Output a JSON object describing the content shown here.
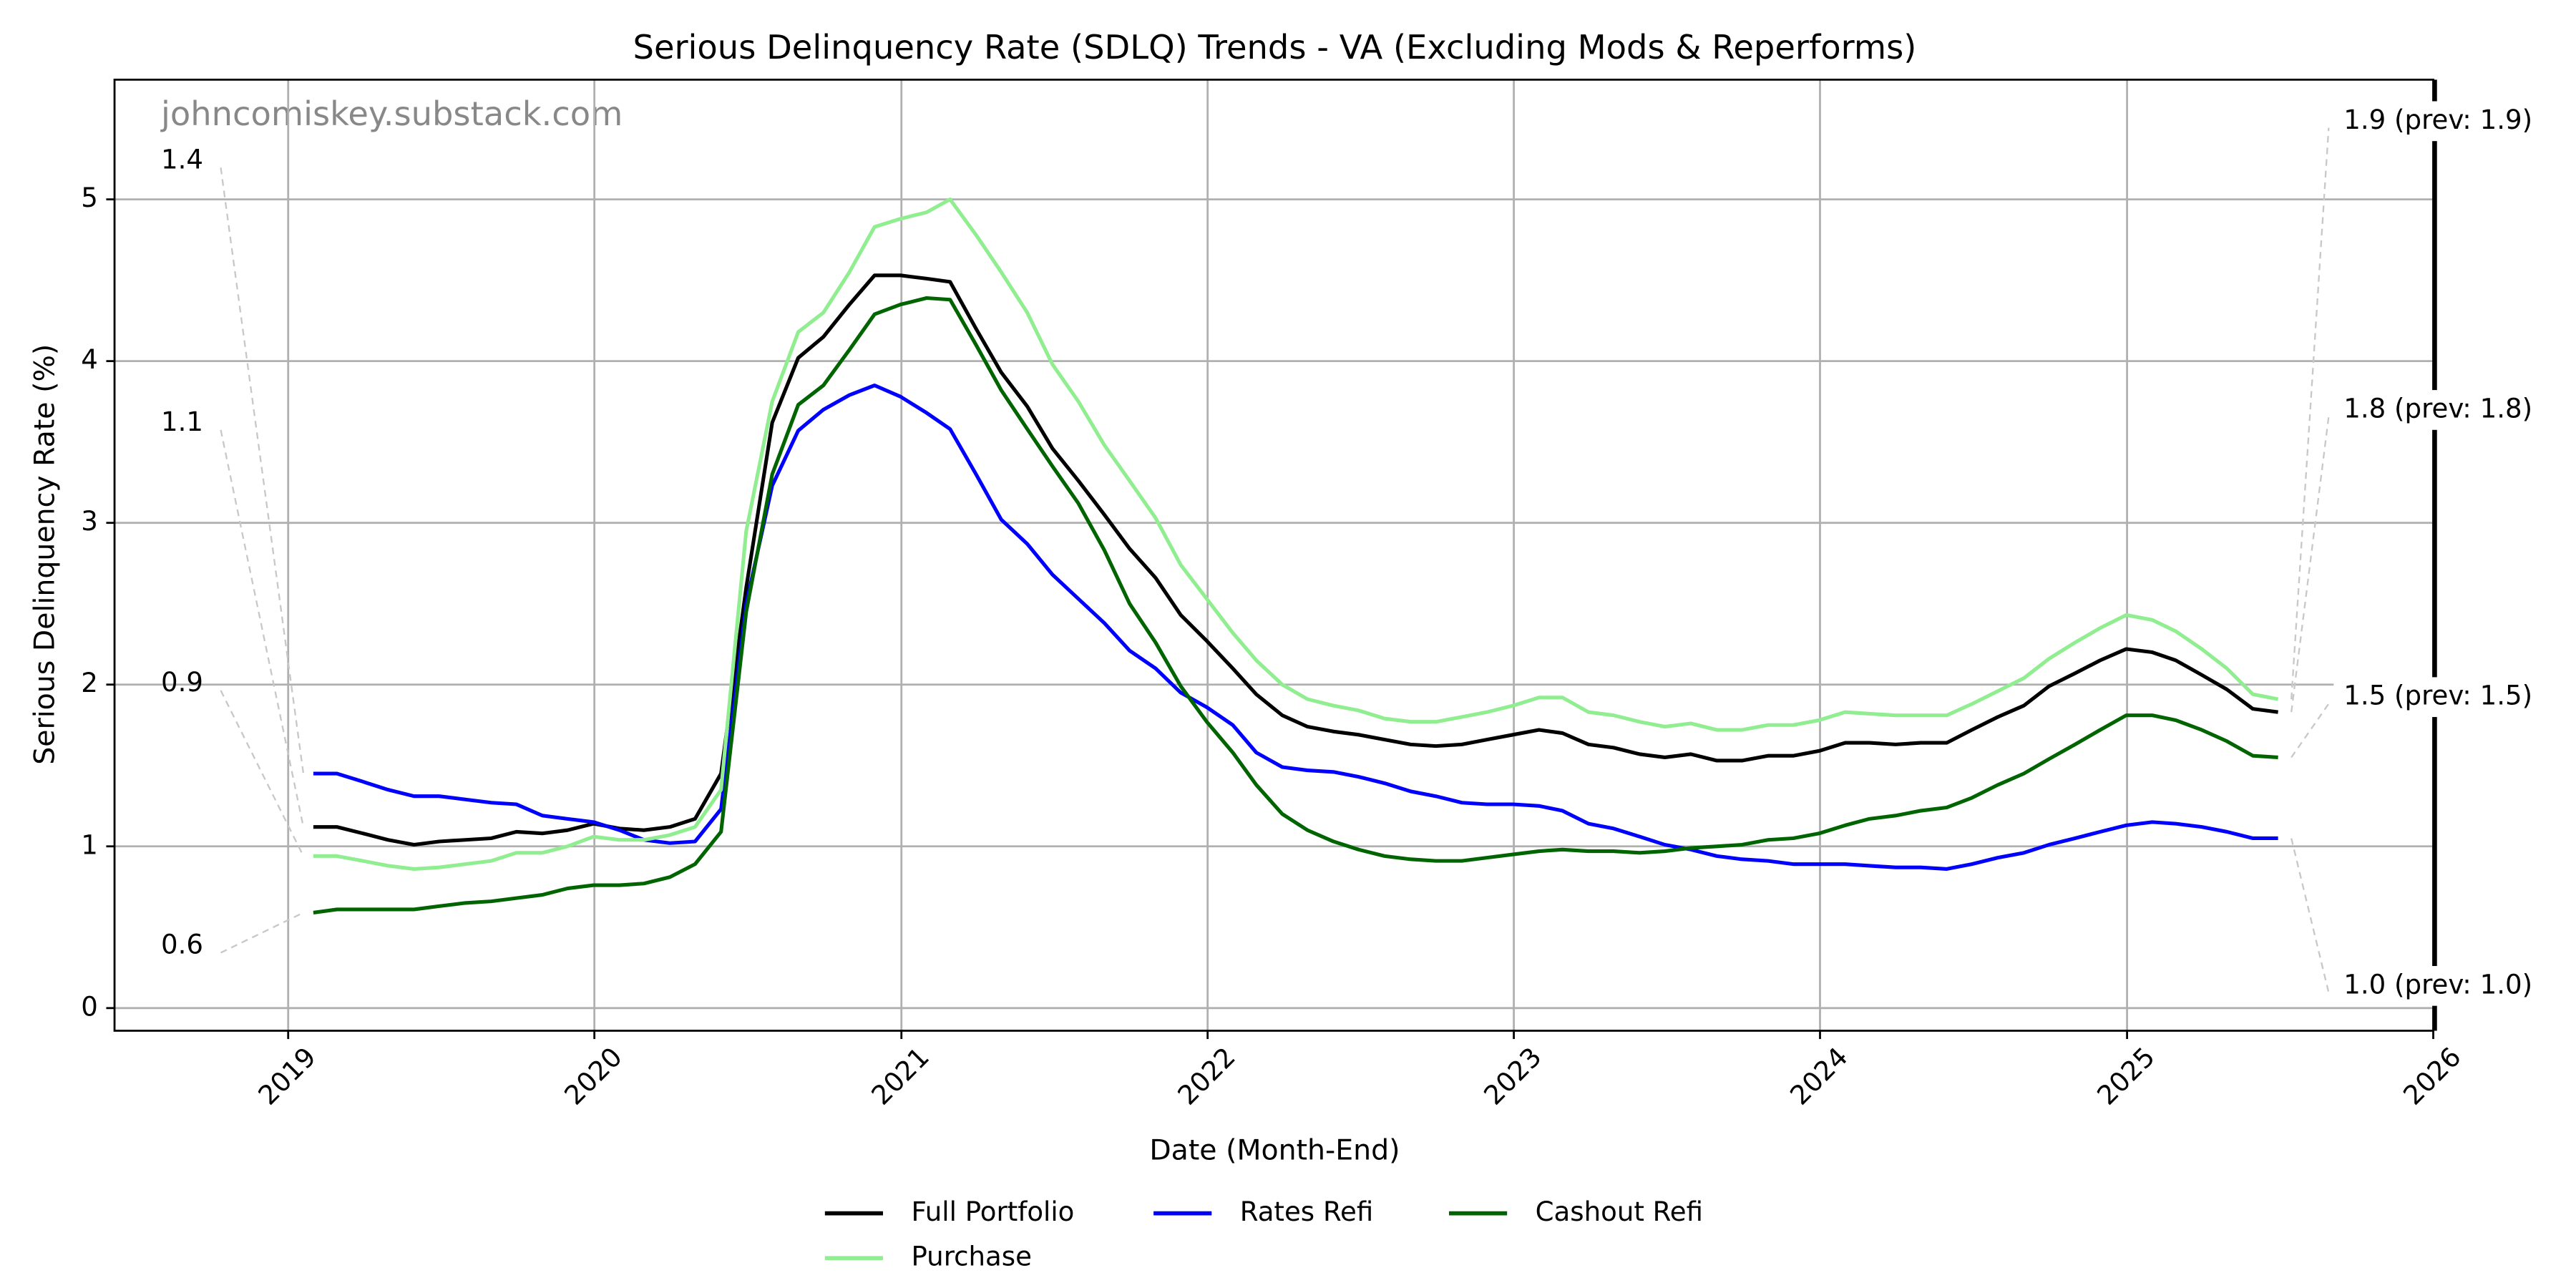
{
  "chart_data": {
    "type": "line",
    "title": "Serious Delinquency Rate (SDLQ) Trends - VA (Excluding Mods & Reperforms)",
    "watermark": "johncomiskey.substack.com",
    "xlabel": "Date (Month-End)",
    "ylabel": "Serious Delinquency Rate (%)",
    "grid": true,
    "legend": "bottom",
    "xlim": [
      "2018-06-08",
      "2026-01-01"
    ],
    "xticks": [
      {
        "value": "2019-01-01",
        "label": "2019"
      },
      {
        "value": "2020-01-01",
        "label": "2020"
      },
      {
        "value": "2021-01-01",
        "label": "2021"
      },
      {
        "value": "2022-01-01",
        "label": "2022"
      },
      {
        "value": "2023-01-01",
        "label": "2023"
      },
      {
        "value": "2024-01-01",
        "label": "2024"
      },
      {
        "value": "2025-01-01",
        "label": "2025"
      },
      {
        "value": "2026-01-01",
        "label": "2026"
      }
    ],
    "ylim": [
      -0.14,
      5.74
    ],
    "yticks": [
      0,
      1,
      2,
      3,
      4,
      5
    ],
    "x": [
      "2019-01",
      "2019-02",
      "2019-03",
      "2019-04",
      "2019-05",
      "2019-06",
      "2019-07",
      "2019-08",
      "2019-09",
      "2019-10",
      "2019-11",
      "2019-12",
      "2020-01",
      "2020-02",
      "2020-03",
      "2020-04",
      "2020-05",
      "2020-06",
      "2020-07",
      "2020-08",
      "2020-09",
      "2020-10",
      "2020-11",
      "2020-12",
      "2021-01",
      "2021-02",
      "2021-03",
      "2021-04",
      "2021-05",
      "2021-06",
      "2021-07",
      "2021-08",
      "2021-09",
      "2021-10",
      "2021-11",
      "2021-12",
      "2022-01",
      "2022-02",
      "2022-03",
      "2022-04",
      "2022-05",
      "2022-06",
      "2022-07",
      "2022-08",
      "2022-09",
      "2022-10",
      "2022-11",
      "2022-12",
      "2023-01",
      "2023-02",
      "2023-03",
      "2023-04",
      "2023-05",
      "2023-06",
      "2023-07",
      "2023-08",
      "2023-09",
      "2023-10",
      "2023-11",
      "2023-12",
      "2024-01",
      "2024-02",
      "2024-03",
      "2024-04",
      "2024-05",
      "2024-06",
      "2024-07",
      "2024-08",
      "2024-09",
      "2024-10",
      "2024-11",
      "2024-12",
      "2025-01",
      "2025-02",
      "2025-03",
      "2025-04",
      "2025-05",
      "2025-06"
    ],
    "series": [
      {
        "name": "Full Portfolio",
        "color": "#000000",
        "label_color": "#333333",
        "start_label": "1.1",
        "end_label": "1.8 (prev: 1.8)",
        "values": [
          1.12,
          1.12,
          1.08,
          1.04,
          1.01,
          1.03,
          1.04,
          1.05,
          1.09,
          1.08,
          1.1,
          1.14,
          1.11,
          1.1,
          1.12,
          1.17,
          1.45,
          2.6,
          3.62,
          4.02,
          4.15,
          4.35,
          4.53,
          4.53,
          4.51,
          4.49,
          4.2,
          3.93,
          3.72,
          3.46,
          3.26,
          3.05,
          2.84,
          2.66,
          2.43,
          2.27,
          2.1,
          1.94,
          1.81,
          1.74,
          1.71,
          1.69,
          1.66,
          1.63,
          1.62,
          1.63,
          1.66,
          1.69,
          1.72,
          1.7,
          1.63,
          1.61,
          1.57,
          1.55,
          1.57,
          1.53,
          1.53,
          1.56,
          1.56,
          1.59,
          1.64,
          1.64,
          1.63,
          1.64,
          1.64,
          1.72,
          1.8,
          1.87,
          1.99,
          2.07,
          2.15,
          2.22,
          2.2,
          2.15,
          2.06,
          1.97,
          1.85,
          1.83
        ]
      },
      {
        "name": "Rates Refi",
        "color": "#0000ff",
        "label_color": "#2222ee",
        "start_label": "1.4",
        "end_label": "1.0 (prev: 1.0)",
        "values": [
          1.45,
          1.45,
          1.4,
          1.35,
          1.31,
          1.31,
          1.29,
          1.27,
          1.26,
          1.19,
          1.17,
          1.15,
          1.1,
          1.04,
          1.02,
          1.03,
          1.23,
          2.5,
          3.23,
          3.57,
          3.7,
          3.79,
          3.85,
          3.78,
          3.68,
          3.58,
          3.3,
          3.02,
          2.87,
          2.68,
          2.53,
          2.38,
          2.21,
          2.1,
          1.95,
          1.86,
          1.75,
          1.58,
          1.49,
          1.47,
          1.46,
          1.43,
          1.39,
          1.34,
          1.31,
          1.27,
          1.26,
          1.26,
          1.25,
          1.22,
          1.14,
          1.11,
          1.06,
          1.01,
          0.98,
          0.94,
          0.92,
          0.91,
          0.89,
          0.89,
          0.89,
          0.88,
          0.87,
          0.87,
          0.86,
          0.89,
          0.93,
          0.96,
          1.01,
          1.05,
          1.09,
          1.13,
          1.15,
          1.14,
          1.12,
          1.09,
          1.05,
          1.05
        ]
      },
      {
        "name": "Cashout Refi",
        "color": "#006400",
        "label_color": "#228b22",
        "start_label": "0.6",
        "end_label": "1.5 (prev: 1.5)",
        "values": [
          0.59,
          0.61,
          0.61,
          0.61,
          0.61,
          0.63,
          0.65,
          0.66,
          0.68,
          0.7,
          0.74,
          0.76,
          0.76,
          0.77,
          0.81,
          0.89,
          1.09,
          2.45,
          3.3,
          3.73,
          3.85,
          4.07,
          4.29,
          4.35,
          4.39,
          4.38,
          4.1,
          3.82,
          3.58,
          3.35,
          3.12,
          2.83,
          2.5,
          2.26,
          1.99,
          1.77,
          1.58,
          1.38,
          1.2,
          1.1,
          1.03,
          0.98,
          0.94,
          0.92,
          0.91,
          0.91,
          0.93,
          0.95,
          0.97,
          0.98,
          0.97,
          0.97,
          0.96,
          0.97,
          0.99,
          1.0,
          1.01,
          1.04,
          1.05,
          1.08,
          1.13,
          1.17,
          1.19,
          1.22,
          1.24,
          1.3,
          1.38,
          1.45,
          1.54,
          1.63,
          1.72,
          1.81,
          1.81,
          1.78,
          1.72,
          1.65,
          1.56,
          1.55
        ]
      },
      {
        "name": "Purchase",
        "color": "#90ee90",
        "label_color": "#90ee90",
        "start_label": "0.9",
        "end_label": "1.9 (prev: 1.9)",
        "values": [
          0.94,
          0.94,
          0.91,
          0.88,
          0.86,
          0.87,
          0.89,
          0.91,
          0.96,
          0.96,
          1.0,
          1.06,
          1.04,
          1.04,
          1.07,
          1.12,
          1.35,
          2.95,
          3.75,
          4.18,
          4.3,
          4.55,
          4.83,
          4.88,
          4.92,
          5.0,
          4.78,
          4.55,
          4.3,
          3.98,
          3.75,
          3.48,
          3.26,
          3.03,
          2.74,
          2.53,
          2.32,
          2.15,
          2.0,
          1.91,
          1.87,
          1.84,
          1.79,
          1.77,
          1.77,
          1.8,
          1.83,
          1.87,
          1.92,
          1.92,
          1.83,
          1.81,
          1.77,
          1.74,
          1.76,
          1.72,
          1.72,
          1.75,
          1.75,
          1.78,
          1.83,
          1.82,
          1.81,
          1.81,
          1.81,
          1.88,
          1.96,
          2.04,
          2.16,
          2.26,
          2.35,
          2.43,
          2.4,
          2.33,
          2.22,
          2.1,
          1.94,
          1.91
        ]
      }
    ]
  }
}
